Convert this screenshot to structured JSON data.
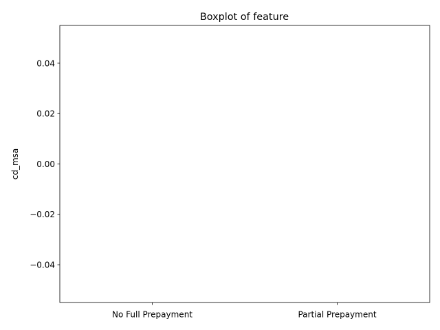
{
  "chart_data": {
    "type": "box",
    "title": "Boxplot of feature",
    "xlabel": "",
    "ylabel": "cd_msa",
    "categories": [
      "No Full Prepayment",
      "Partial Prepayment"
    ],
    "series": [],
    "ylim": [
      -0.055,
      0.055
    ],
    "yticks": [
      -0.04,
      -0.02,
      0.0,
      0.02,
      0.04
    ],
    "ytick_labels": [
      "−0.04",
      "−0.02",
      "0.00",
      "0.02",
      "0.04"
    ],
    "grid": false,
    "legend": "none",
    "colors": {
      "axis": "#000000",
      "background": "#ffffff"
    }
  }
}
